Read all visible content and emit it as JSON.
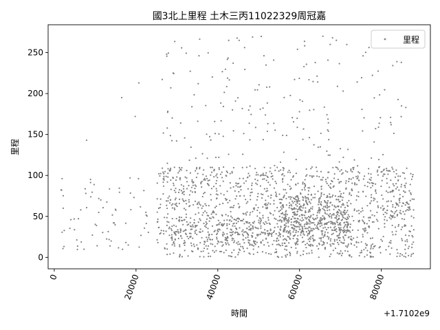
{
  "chart_data": {
    "type": "scatter",
    "title": "國3北上里程 土木三丙11022329周冠嘉",
    "xlabel": "時間",
    "ylabel": "里程",
    "x_offset_label": "+1.7102e9",
    "xlim": [
      -1500,
      92000
    ],
    "ylim": [
      -14,
      284
    ],
    "xticks": [
      0,
      20000,
      40000,
      60000,
      80000
    ],
    "xtick_labels": [
      "0",
      "20000",
      "40000",
      "60000",
      "80000"
    ],
    "yticks": [
      0,
      50,
      100,
      150,
      200,
      250
    ],
    "ytick_labels": [
      "0",
      "50",
      "100",
      "150",
      "200",
      "250"
    ],
    "legend": {
      "position": "top-right",
      "label": "里程"
    },
    "grid": false,
    "series": [
      {
        "name": "里程",
        "color": "#808080",
        "clusters": [
          {
            "x_start": 1500,
            "x_end": 24000,
            "y_min": 8,
            "y_max": 100,
            "count": 70
          },
          {
            "x_start": 25000,
            "x_end": 88000,
            "y_min": 0,
            "y_max": 110,
            "count": 1400
          },
          {
            "x_start": 28000,
            "x_end": 72000,
            "y_min": 15,
            "y_max": 48,
            "count": 300
          },
          {
            "x_start": 55000,
            "x_end": 72000,
            "y_min": 30,
            "y_max": 75,
            "count": 300
          },
          {
            "x_start": 26000,
            "x_end": 86000,
            "y_min": 100,
            "y_max": 270,
            "count": 200
          }
        ],
        "sample_points": [
          {
            "x": 1800,
            "y": 82
          },
          {
            "x": 2200,
            "y": 60
          },
          {
            "x": 7900,
            "y": 143
          },
          {
            "x": 16500,
            "y": 195
          },
          {
            "x": 19800,
            "y": 172
          },
          {
            "x": 20700,
            "y": 213
          },
          {
            "x": 27500,
            "y": 248
          },
          {
            "x": 48500,
            "y": 269
          },
          {
            "x": 59500,
            "y": 254
          },
          {
            "x": 67500,
            "y": 260
          },
          {
            "x": 69000,
            "y": 265
          },
          {
            "x": 86000,
            "y": 183
          }
        ]
      }
    ]
  }
}
